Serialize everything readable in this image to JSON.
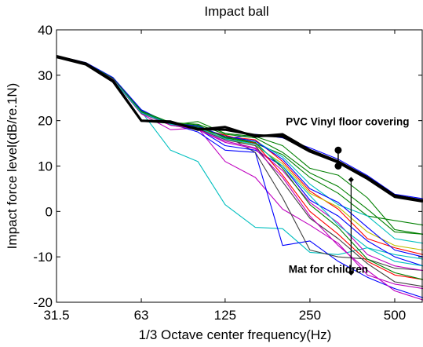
{
  "chart_data": {
    "type": "line",
    "title": "Impact ball",
    "xlabel": "1/3 Octave center frequency(Hz)",
    "ylabel": "Impact force level(dB/re.1N)",
    "x": [
      31.5,
      40,
      50,
      63,
      80,
      100,
      125,
      160,
      200,
      250,
      315,
      400,
      500,
      630
    ],
    "x_ticks": [
      "31.5",
      "63",
      "125",
      "250",
      "500"
    ],
    "x_tick_values": [
      31.5,
      63,
      125,
      250,
      500
    ],
    "x_scale": "log",
    "ylim": [
      -20,
      40
    ],
    "y_ticks": [
      "-20",
      "-10",
      "0",
      "10",
      "20",
      "30",
      "40"
    ],
    "y_tick_values": [
      -20,
      -10,
      0,
      10,
      20,
      30,
      40
    ],
    "grid": false,
    "series": [
      {
        "color": "#000000",
        "bold": true,
        "values": [
          34.2,
          32.6,
          28.8,
          20.0,
          19.8,
          18.0,
          18.6,
          16.5,
          17.0,
          13.5,
          11.0,
          7.5,
          3.5,
          2.4
        ]
      },
      {
        "color": "#000000",
        "bold": true,
        "values": [
          34.0,
          32.4,
          28.6,
          20.0,
          19.6,
          18.2,
          18.0,
          16.8,
          16.5,
          13.2,
          10.8,
          7.2,
          3.2,
          2.2
        ]
      },
      {
        "color": "#0000ff",
        "values": [
          34.3,
          32.8,
          29.5,
          22.4,
          19.2,
          18.5,
          16.0,
          17.0,
          16.2,
          14.0,
          11.5,
          7.9,
          3.8,
          2.8
        ]
      },
      {
        "color": "#00bfbf",
        "values": [
          34.1,
          32.6,
          29.2,
          22.0,
          13.5,
          11.0,
          1.5,
          -3.5,
          -3.8,
          -9.0,
          -9.5,
          -8.0,
          -9.5,
          -10.5
        ]
      },
      {
        "color": "#007f00",
        "values": [
          34.2,
          32.7,
          29.3,
          22.2,
          19.0,
          19.8,
          17.2,
          16.5,
          14.5,
          9.5,
          8.0,
          3.0,
          -4.0,
          -5.0
        ]
      },
      {
        "color": "#ff0000",
        "values": [
          34.1,
          32.5,
          29.1,
          21.8,
          19.5,
          18.5,
          16.5,
          15.8,
          11.0,
          4.5,
          0.5,
          -6.0,
          -8.0,
          -9.5
        ]
      },
      {
        "color": "#bf00bf",
        "values": [
          34.2,
          32.6,
          29.0,
          21.5,
          18.0,
          18.4,
          11.0,
          7.5,
          0.5,
          -3.0,
          -7.0,
          -14.0,
          -16.0,
          -17.0
        ]
      },
      {
        "color": "#0000ff",
        "values": [
          34.3,
          32.7,
          29.4,
          22.3,
          19.3,
          17.5,
          13.5,
          13.0,
          -7.5,
          -6.5,
          -11.0,
          -14.5,
          -17.0,
          -19.0
        ]
      },
      {
        "color": "#404040",
        "values": [
          34.1,
          32.5,
          29.0,
          21.6,
          19.0,
          18.0,
          16.8,
          13.0,
          3.0,
          -8.5,
          -10.0,
          -10.5,
          -12.5,
          -13.0
        ]
      },
      {
        "color": "#007f00",
        "values": [
          34.2,
          32.6,
          29.2,
          21.9,
          19.4,
          19.0,
          16.2,
          15.0,
          12.5,
          7.5,
          4.0,
          -1.0,
          -2.0,
          -3.0
        ]
      },
      {
        "color": "#bfbf00",
        "values": [
          34.1,
          32.5,
          29.1,
          21.7,
          19.3,
          18.5,
          16.0,
          14.5,
          10.5,
          4.0,
          1.0,
          -4.5,
          -7.5,
          -8.5
        ]
      },
      {
        "color": "#0000ff",
        "values": [
          34.2,
          32.6,
          29.3,
          22.0,
          19.1,
          18.2,
          14.5,
          13.5,
          10.0,
          2.5,
          -1.0,
          -6.5,
          -10.0,
          -12.0
        ]
      },
      {
        "color": "#00bfbf",
        "values": [
          34.2,
          32.6,
          29.2,
          21.9,
          19.5,
          18.6,
          16.5,
          15.5,
          12.0,
          6.0,
          1.5,
          -1.0,
          -6.0,
          -7.0
        ]
      },
      {
        "color": "#bf00bf",
        "values": [
          34.1,
          32.5,
          29.0,
          21.6,
          19.2,
          18.0,
          15.5,
          14.0,
          9.0,
          2.0,
          -2.5,
          -9.5,
          -12.0,
          -13.0
        ]
      },
      {
        "color": "#ff0000",
        "values": [
          34.2,
          32.6,
          29.1,
          21.8,
          19.0,
          18.3,
          16.8,
          15.0,
          8.0,
          0.0,
          -5.0,
          -11.0,
          -14.0,
          -15.0
        ]
      },
      {
        "color": "#007f00",
        "values": [
          34.2,
          32.7,
          29.3,
          22.1,
          19.6,
          19.2,
          17.0,
          16.2,
          13.0,
          8.5,
          5.5,
          0.5,
          -4.5,
          -5.0
        ]
      },
      {
        "color": "#404040",
        "values": [
          34.1,
          32.5,
          29.0,
          21.6,
          19.1,
          18.2,
          15.8,
          14.5,
          6.5,
          -1.5,
          -6.0,
          -11.5,
          -15.5,
          -16.5
        ]
      },
      {
        "color": "#0000ff",
        "values": [
          34.2,
          32.6,
          29.2,
          21.8,
          19.4,
          18.8,
          16.5,
          15.5,
          11.5,
          5.0,
          2.0,
          -3.5,
          -8.5,
          -10.0
        ]
      },
      {
        "color": "#007f00",
        "values": [
          34.2,
          32.6,
          29.2,
          21.9,
          19.3,
          18.6,
          16.4,
          15.2,
          9.5,
          1.5,
          -3.5,
          -10.5,
          -13.5,
          -15.0
        ]
      },
      {
        "color": "#bf00bf",
        "values": [
          34.1,
          32.5,
          29.1,
          21.7,
          19.0,
          18.1,
          15.2,
          13.8,
          7.5,
          -1.0,
          -7.5,
          -13.0,
          -17.5,
          -19.5
        ]
      },
      {
        "color": "#00bfbf",
        "values": [
          34.1,
          32.5,
          29.0,
          21.7,
          19.2,
          18.4,
          16.0,
          14.8,
          10.0,
          3.5,
          -3.0,
          -8.0,
          -11.0,
          -12.0
        ]
      }
    ],
    "annotations": [
      {
        "text": "PVC Vinyl floor covering",
        "x": 340,
        "y": 19.0
      },
      {
        "text": "Mat for children",
        "x": 210,
        "y": -13.5
      }
    ],
    "markers": [
      {
        "x": 315,
        "y": 13.5,
        "style": "dot"
      },
      {
        "x": 315,
        "y": 10.0,
        "style": "dot"
      },
      {
        "x": 350,
        "y": 7.0,
        "style": "diamond"
      },
      {
        "x": 350,
        "y": -13.5,
        "style": "diamond"
      }
    ]
  }
}
